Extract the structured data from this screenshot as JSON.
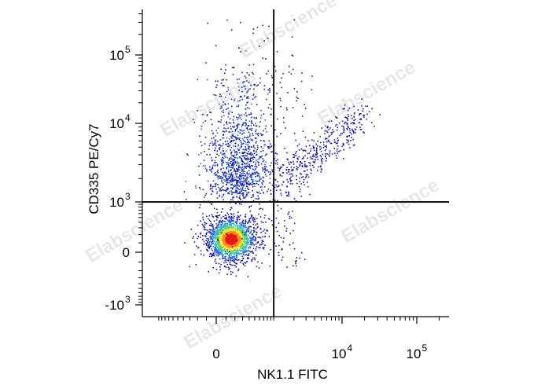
{
  "chart_data": {
    "type": "scatter",
    "subtype": "flow-cytometry-density-dot-plot",
    "title": "",
    "xlabel": "NK1.1 FITC",
    "ylabel": "CD335 PE/Cy7",
    "x_scale": "biexponential",
    "y_scale": "biexponential",
    "xlim": [
      -1000,
      260000
    ],
    "ylim": [
      -1500,
      400000
    ],
    "x_ticks": [
      {
        "value": 0,
        "label": "0",
        "exp": ""
      },
      {
        "value": 10000,
        "label": "10",
        "exp": "4"
      },
      {
        "value": 100000,
        "label": "10",
        "exp": "5"
      }
    ],
    "y_ticks": [
      {
        "value": -1000,
        "label": "-10",
        "exp": "3"
      },
      {
        "value": 0,
        "label": "0",
        "exp": ""
      },
      {
        "value": 1000,
        "label": "10",
        "exp": "3"
      },
      {
        "value": 10000,
        "label": "10",
        "exp": "4"
      },
      {
        "value": 100000,
        "label": "10",
        "exp": "5"
      }
    ],
    "quadrant_gate": {
      "x": 1000,
      "y": 1000
    },
    "colormap": [
      "#1a1aa0",
      "#2a5fd8",
      "#32b8c8",
      "#5fd25a",
      "#ffe030",
      "#ff8a1c",
      "#e81818"
    ],
    "populations": [
      {
        "x_center": 150,
        "y_center": 150,
        "density": "very high",
        "count": 2600
      },
      {
        "x_center": 250,
        "y_center": 4000,
        "density": "medium",
        "count": 1000
      },
      {
        "x_center": 12000,
        "y_center": 12000,
        "density": "low",
        "count": 400
      }
    ],
    "watermark": "Elabscience"
  }
}
